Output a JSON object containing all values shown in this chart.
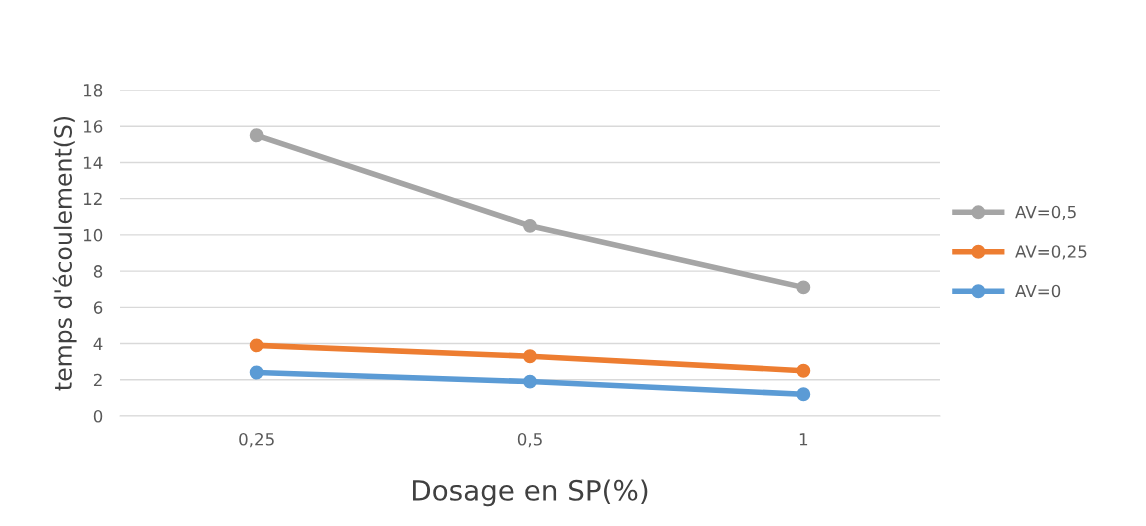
{
  "chart_data": {
    "type": "line",
    "xlabel": "Dosage en SP(%)",
    "ylabel": "temps d'écoulement(S)",
    "categories": [
      "0,25",
      "0,5",
      "1"
    ],
    "series": [
      {
        "name": "AV=0,5",
        "color": "#a5a5a5",
        "values": [
          15.5,
          10.5,
          7.1
        ]
      },
      {
        "name": "AV=0,25",
        "color": "#ed7d31",
        "values": [
          3.9,
          3.3,
          2.5
        ]
      },
      {
        "name": "AV=0",
        "color": "#5b9bd5",
        "values": [
          2.4,
          1.9,
          1.2
        ]
      }
    ],
    "ylim": [
      0,
      18
    ],
    "yticks": [
      0,
      2,
      4,
      6,
      8,
      10,
      12,
      14,
      16,
      18
    ],
    "grid": "y",
    "legend": "right",
    "marker": "circle",
    "line_style": "solid"
  }
}
